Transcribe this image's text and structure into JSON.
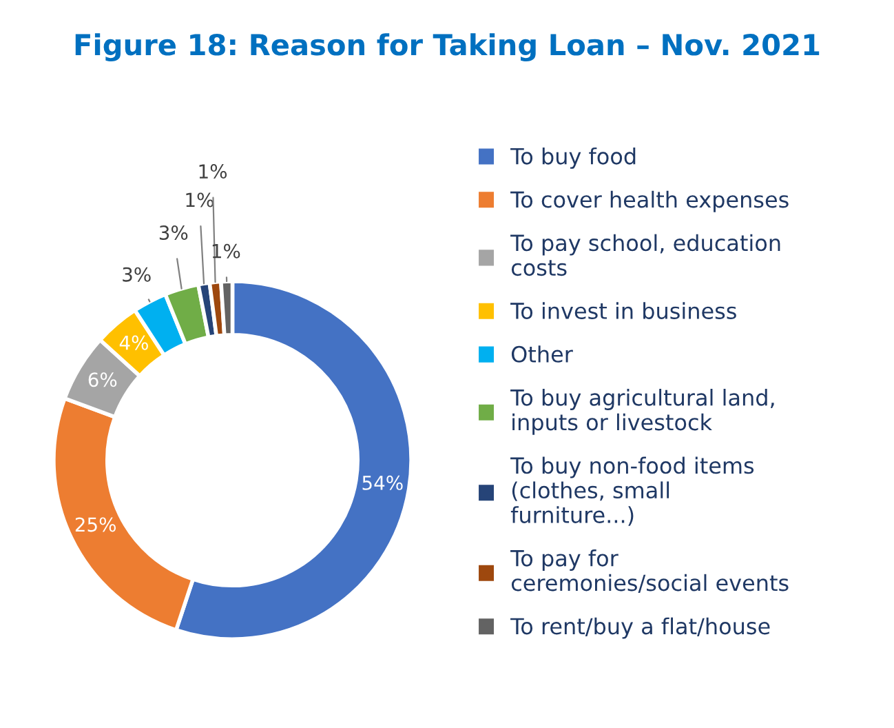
{
  "chart_data": {
    "type": "donut",
    "title": "Figure 18: Reason for Taking Loan – Nov. 2021",
    "categories": [
      "To buy food",
      "To cover health expenses",
      "To pay school, education costs",
      "To invest in business",
      "Other",
      "To buy agricultural land, inputs or livestock",
      "To buy non-food items (clothes, small furniture...)",
      "To pay for ceremonies/social events",
      "To rent/buy a flat/house"
    ],
    "values": [
      54,
      25,
      6,
      4,
      3,
      3,
      1,
      1,
      1
    ],
    "value_labels": [
      "54%",
      "25%",
      "6%",
      "4%",
      "3%",
      "3%",
      "1%",
      "1%",
      "1%"
    ],
    "colors": [
      "#4472c4",
      "#ed7d31",
      "#a5a5a5",
      "#ffc000",
      "#00b0f0",
      "#70ad47",
      "#264478",
      "#9e480e",
      "#636363"
    ],
    "legend": "right"
  }
}
